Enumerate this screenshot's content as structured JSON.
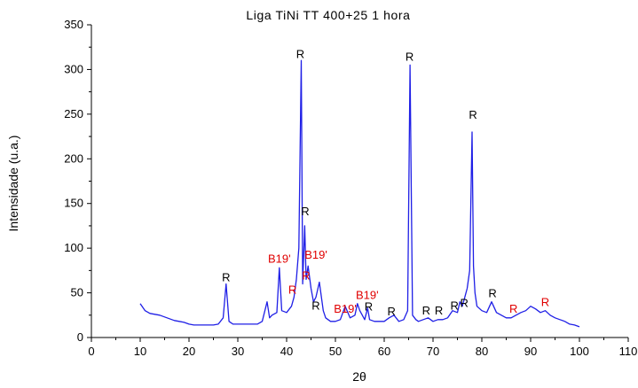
{
  "chart_data": {
    "type": "line",
    "title": "Liga TiNi TT 400+25 1 hora",
    "xlabel": "2θ",
    "ylabel": "Intensidade (u.a.)",
    "xlim": [
      0,
      110
    ],
    "ylim": [
      0,
      350
    ],
    "x_ticks": [
      0,
      10,
      20,
      30,
      40,
      50,
      60,
      70,
      80,
      90,
      100,
      110
    ],
    "y_ticks": [
      0,
      50,
      100,
      150,
      200,
      250,
      300,
      350
    ],
    "grid": false,
    "legend": "none",
    "series_color": "#1f1fe6",
    "series": [
      {
        "x": [
          10,
          11,
          12,
          13,
          14,
          15,
          16,
          17,
          18,
          19,
          20,
          21,
          22,
          23,
          24,
          25,
          26,
          27,
          27.6,
          28.2,
          29,
          30,
          31,
          32,
          33,
          34,
          35,
          36,
          36.5,
          37,
          38,
          38.5,
          39,
          40,
          41,
          41.5,
          42,
          42.5,
          43,
          43.3,
          43.7,
          44,
          44.4,
          45,
          45.5,
          46,
          46.7,
          47.5,
          48,
          49,
          50,
          51,
          52,
          53,
          54,
          54.5,
          55,
          56,
          56.6,
          57,
          58,
          59,
          60,
          61,
          62,
          63,
          64,
          64.8,
          65.3,
          65.8,
          66.5,
          67,
          68,
          69,
          70,
          71,
          72,
          73,
          74,
          75,
          75.5,
          76,
          76.5,
          77,
          77.5,
          78.0,
          78.3,
          78.6,
          79,
          80,
          81,
          82,
          83,
          84,
          85,
          86,
          87,
          88,
          89,
          90,
          91,
          92,
          93,
          94,
          95,
          96,
          97,
          98,
          99,
          100
        ],
        "y": [
          38,
          30,
          27,
          26,
          25,
          23,
          21,
          19,
          18,
          17,
          15,
          14,
          14,
          14,
          14,
          14,
          15,
          22,
          60,
          18,
          15,
          15,
          15,
          15,
          15,
          15,
          18,
          40,
          22,
          25,
          28,
          78,
          30,
          28,
          35,
          45,
          65,
          100,
          310,
          60,
          125,
          65,
          80,
          55,
          40,
          45,
          62,
          30,
          22,
          18,
          18,
          20,
          35,
          22,
          25,
          38,
          30,
          20,
          33,
          20,
          18,
          18,
          18,
          22,
          25,
          18,
          20,
          30,
          305,
          25,
          20,
          18,
          20,
          22,
          18,
          20,
          20,
          22,
          30,
          28,
          40,
          35,
          45,
          55,
          75,
          230,
          80,
          50,
          35,
          30,
          28,
          40,
          28,
          25,
          22,
          22,
          25,
          28,
          30,
          35,
          32,
          28,
          30,
          25,
          22,
          20,
          18,
          15,
          14,
          12
        ]
      }
    ],
    "annotations": [
      {
        "text": "R",
        "x": 27.6,
        "y": 63,
        "color": "#000000"
      },
      {
        "text": "R",
        "x": 42.8,
        "y": 313,
        "color": "#000000"
      },
      {
        "text": "R",
        "x": 43.8,
        "y": 137,
        "color": "#000000"
      },
      {
        "text": "B19'",
        "x": 38.5,
        "y": 84,
        "color": "#e00000"
      },
      {
        "text": "B19'",
        "x": 46.0,
        "y": 88,
        "color": "#e00000"
      },
      {
        "text": "R",
        "x": 44.0,
        "y": 65,
        "color": "#e00000"
      },
      {
        "text": "R",
        "x": 46.0,
        "y": 31,
        "color": "#000000"
      },
      {
        "text": "R",
        "x": 41.2,
        "y": 49,
        "color": "#e00000"
      },
      {
        "text": "B19'",
        "x": 56.5,
        "y": 43,
        "color": "#e00000"
      },
      {
        "text": "B19'",
        "x": 52.0,
        "y": 28,
        "color": "#e00000"
      },
      {
        "text": "R",
        "x": 56.8,
        "y": 30,
        "color": "#000000"
      },
      {
        "text": "R",
        "x": 61.5,
        "y": 25,
        "color": "#000000"
      },
      {
        "text": "R",
        "x": 65.2,
        "y": 310,
        "color": "#000000"
      },
      {
        "text": "R",
        "x": 68.6,
        "y": 26,
        "color": "#000000"
      },
      {
        "text": "R",
        "x": 71.2,
        "y": 26,
        "color": "#000000"
      },
      {
        "text": "R",
        "x": 74.4,
        "y": 31,
        "color": "#000000"
      },
      {
        "text": "R",
        "x": 76.4,
        "y": 34,
        "color": "#000000"
      },
      {
        "text": "R",
        "x": 78.2,
        "y": 245,
        "color": "#000000"
      },
      {
        "text": "R",
        "x": 82.2,
        "y": 45,
        "color": "#000000"
      },
      {
        "text": "R",
        "x": 86.5,
        "y": 28,
        "color": "#e00000"
      },
      {
        "text": "R",
        "x": 93.0,
        "y": 35,
        "color": "#e00000"
      }
    ]
  }
}
